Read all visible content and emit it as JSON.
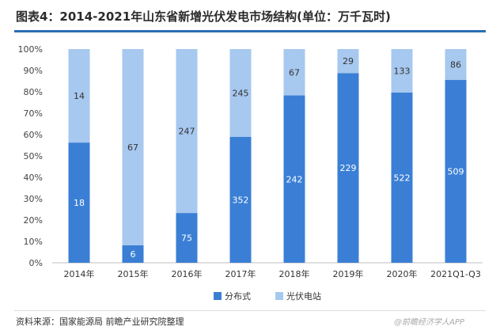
{
  "title": "图表4：2014-2021年山东省新增光伏发电市场结构(单位：万千瓦时)",
  "source": "资料来源：国家能源局 前瞻产业研究院整理",
  "watermark": "@前瞻经济学人APP",
  "chart_data": {
    "type": "bar",
    "stacked": true,
    "normalized": true,
    "categories": [
      "2014年",
      "2015年",
      "2016年",
      "2017年",
      "2018年",
      "2019年",
      "2020年",
      "2021Q1-Q3"
    ],
    "series": [
      {
        "name": "分布式",
        "color": "#3a7fd5",
        "values": [
          18,
          6,
          75,
          352,
          242,
          229,
          522,
          509
        ]
      },
      {
        "name": "光伏电站",
        "color": "#a7c8ef",
        "values": [
          14,
          67,
          247,
          245,
          67,
          29,
          133,
          86
        ]
      }
    ],
    "yticks": [
      "0%",
      "10%",
      "20%",
      "30%",
      "40%",
      "50%",
      "60%",
      "70%",
      "80%",
      "90%",
      "100%"
    ],
    "ylim": [
      0,
      100
    ],
    "legend_position": "bottom"
  }
}
